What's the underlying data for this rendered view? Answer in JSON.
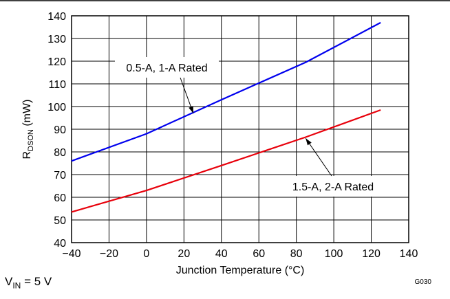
{
  "chart_data": {
    "type": "line",
    "xlabel": "Junction Temperature (°C)",
    "ylabel_main": "R",
    "ylabel_sub": "DSON",
    "ylabel_tail": " (mW)",
    "xlim": [
      -40,
      140
    ],
    "ylim": [
      40,
      140
    ],
    "x_ticks": [
      -40,
      -20,
      0,
      20,
      40,
      60,
      80,
      100,
      120,
      140
    ],
    "y_ticks": [
      40,
      50,
      60,
      70,
      80,
      90,
      100,
      110,
      120,
      130,
      140
    ],
    "x_tick_labels": [
      "−40",
      "−20",
      "0",
      "20",
      "40",
      "60",
      "80",
      "100",
      "120",
      "140"
    ],
    "grid": true,
    "figure_id": "G030",
    "series": [
      {
        "name": "0.5-A, 1-A Rated",
        "color": "#0000ee",
        "x": [
          -40,
          0,
          40,
          85,
          125
        ],
        "y": [
          76,
          88,
          103,
          119.5,
          137
        ]
      },
      {
        "name": "1.5-A, 2-A Rated",
        "color": "#e8000b",
        "x": [
          -40,
          0,
          40,
          85,
          125
        ],
        "y": [
          53.5,
          63,
          74,
          86.5,
          98.5
        ]
      }
    ],
    "annotations": [
      {
        "series": 0,
        "text": "0.5-A, 1-A Rated",
        "arrow_to": [
          25,
          97
        ]
      },
      {
        "series": 1,
        "text": "1.5-A, 2-A Rated",
        "arrow_to": [
          85,
          86
        ]
      }
    ]
  },
  "footnote": {
    "main": "V",
    "sub": "IN",
    "tail": " = 5 V"
  }
}
